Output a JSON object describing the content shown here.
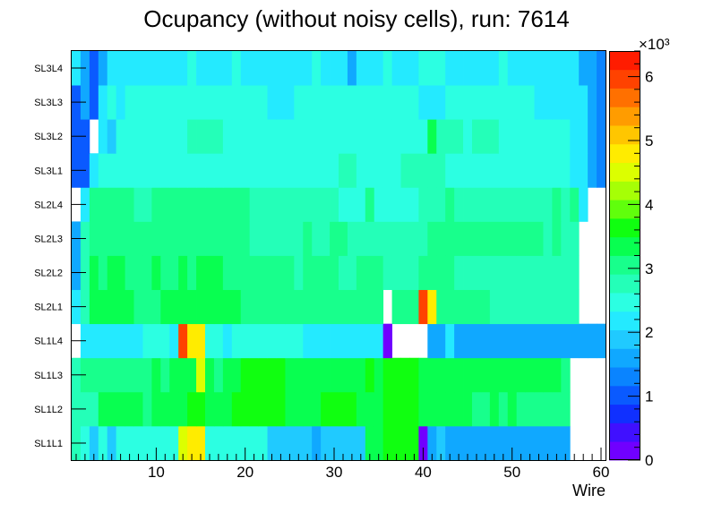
{
  "chart_data": {
    "type": "heatmap",
    "title": "Ocupancy (without noisy cells), run: 7614",
    "xlabel": "Wire",
    "ylabel": "",
    "xlim": [
      0.5,
      60.5
    ],
    "x_ticks": [
      10,
      20,
      30,
      40,
      50,
      60
    ],
    "y_categories": [
      "SL1L1",
      "SL1L2",
      "SL1L3",
      "SL1L4",
      "SL2L1",
      "SL2L2",
      "SL2L3",
      "SL2L4",
      "SL3L1",
      "SL3L2",
      "SL3L3",
      "SL3L4"
    ],
    "z_range": [
      0,
      6400
    ],
    "z_exponent_label": "×10³",
    "z_ticks": [
      "0",
      "1",
      "2",
      "3",
      "4",
      "5",
      "6"
    ],
    "palette": [
      "#7000ff",
      "#4010ff",
      "#1030ff",
      "#0a5aff",
      "#0a84ff",
      "#10a8ff",
      "#20caff",
      "#24eaff",
      "#2cffe2",
      "#24ffb8",
      "#18ff8c",
      "#08ff50",
      "#10ff10",
      "#60ff0c",
      "#a6ff06",
      "#dcff00",
      "#ffec00",
      "#ffc600",
      "#ff9c00",
      "#ff7000",
      "#ff4200",
      "#ff1c00"
    ],
    "grid": false,
    "legend": "colorbar-right",
    "rows": {
      "SL1L1": [
        2650,
        2350,
        1950,
        2350,
        1950,
        2350,
        2350,
        2350,
        2350,
        2350,
        2350,
        2350,
        4400,
        4900,
        4900,
        2350,
        2350,
        2350,
        2350,
        2350,
        2350,
        2350,
        1950,
        1950,
        1950,
        1950,
        1950,
        1650,
        1950,
        1950,
        1950,
        1950,
        1950,
        3300,
        3300,
        3700,
        3700,
        3700,
        3700,
        0,
        1650,
        1950,
        1650,
        1650,
        1650,
        1650,
        1650,
        1650,
        1650,
        1650,
        1650,
        1650,
        1650,
        1650,
        1650,
        1650,
        null,
        null,
        null,
        null
      ],
      "SL1L2": [
        2650,
        2650,
        2650,
        3300,
        3300,
        3300,
        3300,
        3300,
        3000,
        3300,
        3300,
        3300,
        3300,
        3700,
        3700,
        3300,
        3300,
        3300,
        3600,
        3600,
        3600,
        3600,
        3600,
        3600,
        3300,
        3300,
        3300,
        3300,
        3600,
        3600,
        3600,
        3600,
        3300,
        3300,
        3300,
        3600,
        3600,
        3600,
        3600,
        3300,
        3300,
        3300,
        3300,
        3300,
        3300,
        3000,
        3000,
        3300,
        3000,
        3300,
        3000,
        3000,
        3000,
        3000,
        3000,
        3000,
        null,
        null,
        null,
        null
      ],
      "SL1L3": [
        2650,
        3000,
        3000,
        3000,
        3000,
        3000,
        3000,
        3000,
        3000,
        3300,
        3000,
        3300,
        3300,
        3300,
        4600,
        3300,
        3000,
        3300,
        3300,
        3600,
        3600,
        3600,
        3600,
        3600,
        3300,
        3300,
        3300,
        3300,
        3300,
        3300,
        3300,
        3300,
        3300,
        3600,
        3300,
        3600,
        3600,
        3600,
        3600,
        3300,
        3300,
        3300,
        3300,
        3300,
        3300,
        3300,
        3300,
        3300,
        3300,
        3300,
        3300,
        3300,
        3300,
        3300,
        3300,
        3000,
        null,
        null,
        null,
        null
      ],
      "SL1L4": [
        null,
        2200,
        2200,
        2200,
        2200,
        2200,
        2200,
        2200,
        2350,
        2350,
        2350,
        2200,
        5900,
        4900,
        4900,
        2350,
        2350,
        2200,
        2350,
        2350,
        2350,
        2350,
        2350,
        2350,
        2350,
        2350,
        2200,
        2200,
        2200,
        2200,
        2200,
        2200,
        2200,
        2200,
        2200,
        0,
        null,
        null,
        null,
        null,
        1650,
        1650,
        2200,
        1650,
        1650,
        1650,
        1650,
        1650,
        1650,
        1650,
        1650,
        1650,
        1650,
        1650,
        1650,
        1650,
        1650,
        1650,
        1650,
        1650
      ],
      "SL2L1": [
        2200,
        2650,
        3300,
        3300,
        3300,
        3300,
        3300,
        3000,
        3000,
        3000,
        3300,
        3300,
        3300,
        3300,
        3300,
        3300,
        3300,
        3300,
        3300,
        3000,
        3000,
        3000,
        3000,
        3000,
        3000,
        3000,
        3000,
        3000,
        3000,
        3000,
        3000,
        3000,
        3000,
        3000,
        3000,
        null,
        3000,
        3000,
        3000,
        6100,
        4900,
        3000,
        3000,
        3000,
        3000,
        3000,
        3000,
        2650,
        2650,
        2650,
        2650,
        2650,
        2650,
        2650,
        2650,
        2650,
        2650,
        null,
        null,
        null
      ],
      "SL2L2": [
        1650,
        2650,
        3300,
        3000,
        3300,
        3300,
        3000,
        3000,
        3000,
        3300,
        3000,
        3000,
        3300,
        3000,
        3300,
        3300,
        3300,
        3000,
        3000,
        3000,
        3000,
        3000,
        3000,
        3000,
        3000,
        2650,
        3000,
        3000,
        3000,
        3000,
        2650,
        2650,
        3000,
        3000,
        3000,
        2650,
        2650,
        2650,
        2650,
        3000,
        3000,
        3000,
        3000,
        2650,
        2650,
        2650,
        2650,
        2650,
        2650,
        2650,
        2650,
        2650,
        2650,
        2650,
        2650,
        2650,
        2650,
        null,
        null,
        null
      ],
      "SL2L3": [
        1650,
        2650,
        3000,
        3000,
        3000,
        3000,
        3000,
        3000,
        3000,
        3000,
        3000,
        3000,
        3000,
        3000,
        3000,
        3000,
        3000,
        3000,
        3000,
        3000,
        2650,
        2650,
        2650,
        2650,
        2650,
        2650,
        3000,
        2650,
        2650,
        3000,
        3000,
        2650,
        2650,
        2650,
        2650,
        2650,
        2650,
        2650,
        2650,
        2650,
        3000,
        3000,
        3000,
        3000,
        3000,
        3000,
        3000,
        3000,
        3000,
        3000,
        3000,
        3000,
        3000,
        2650,
        3000,
        2650,
        2650,
        null,
        null,
        null
      ],
      "SL2L4": [
        null,
        2200,
        3000,
        3000,
        3000,
        3000,
        3000,
        2650,
        2650,
        3000,
        3000,
        3000,
        3000,
        3000,
        3000,
        3000,
        3000,
        3000,
        3000,
        3000,
        2650,
        2650,
        2650,
        2650,
        2650,
        2650,
        2650,
        2650,
        2650,
        2650,
        2350,
        2350,
        2350,
        3000,
        2350,
        2350,
        2350,
        2350,
        2350,
        2650,
        2650,
        2650,
        3000,
        2650,
        2650,
        2650,
        2650,
        2650,
        2650,
        2650,
        2650,
        2650,
        2650,
        2650,
        3000,
        2650,
        3000,
        2200,
        null,
        null
      ],
      "SL3L1": [
        1000,
        1000,
        2200,
        2350,
        2350,
        2350,
        2350,
        2350,
        2350,
        2350,
        2350,
        2350,
        2350,
        2350,
        2350,
        2350,
        2350,
        2350,
        2350,
        2350,
        2350,
        2350,
        2350,
        2350,
        2350,
        2350,
        2350,
        2350,
        2350,
        2350,
        2650,
        2650,
        2350,
        2350,
        2350,
        2350,
        2350,
        2650,
        2650,
        2650,
        2650,
        2650,
        2350,
        2350,
        2350,
        2350,
        2350,
        2350,
        2350,
        2350,
        2350,
        2350,
        2350,
        2350,
        2350,
        2350,
        2200,
        2200,
        1650,
        1350
      ],
      "SL3L2": [
        1000,
        1000,
        null,
        2200,
        1950,
        2350,
        2350,
        2350,
        2350,
        2350,
        2350,
        2350,
        2350,
        2650,
        2650,
        2650,
        2650,
        2350,
        2350,
        2350,
        2350,
        2350,
        2350,
        2350,
        2350,
        2350,
        2350,
        2350,
        2350,
        2350,
        2350,
        2350,
        2350,
        2350,
        2350,
        2350,
        2350,
        2350,
        2350,
        2350,
        3300,
        2650,
        2650,
        2650,
        2350,
        2650,
        2650,
        2650,
        2350,
        2350,
        2350,
        2350,
        2350,
        2350,
        2350,
        2350,
        2200,
        2200,
        1650,
        1350
      ],
      "SL3L3": [
        1000,
        1650,
        1000,
        2200,
        2350,
        2200,
        2350,
        2350,
        2350,
        2350,
        2350,
        2350,
        2350,
        2350,
        2350,
        2350,
        2350,
        2350,
        2350,
        2350,
        2350,
        2350,
        2200,
        2200,
        2200,
        2350,
        2350,
        2350,
        2350,
        2350,
        2350,
        2350,
        2350,
        2350,
        2350,
        2350,
        2350,
        2350,
        2350,
        2200,
        2200,
        2200,
        2350,
        2350,
        2350,
        2350,
        2350,
        2350,
        2350,
        2350,
        2350,
        2350,
        2200,
        2200,
        2200,
        2200,
        2200,
        2200,
        1650,
        1350
      ],
      "SL3L4": [
        2200,
        1650,
        1000,
        1650,
        2200,
        2200,
        2200,
        2200,
        2200,
        2200,
        2200,
        2200,
        2200,
        2350,
        2200,
        2200,
        2200,
        2200,
        2350,
        2200,
        2200,
        2200,
        2200,
        2200,
        2200,
        2200,
        2200,
        2350,
        2200,
        2200,
        2200,
        1650,
        2200,
        2200,
        2200,
        2350,
        2200,
        2200,
        2200,
        2350,
        2350,
        2350,
        2200,
        2200,
        2200,
        2200,
        2200,
        2200,
        2350,
        2200,
        2200,
        2200,
        2200,
        2200,
        2200,
        2200,
        2200,
        1650,
        1650,
        1350
      ]
    }
  }
}
